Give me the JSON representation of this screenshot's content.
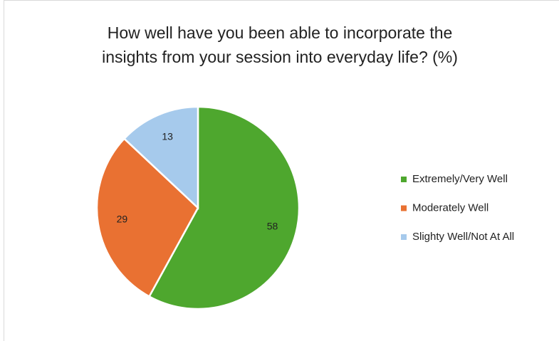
{
  "chart_data": {
    "type": "pie",
    "title": [
      "How well have you been able to incorporate the",
      "insights from your session into everyday life? (%)"
    ],
    "categories": [
      "Extremely/Very Well",
      "Moderately Well",
      "Slighty Well/Not At All"
    ],
    "values": [
      58,
      29,
      13
    ],
    "colors": [
      "#4ea72e",
      "#e97132",
      "#a6caec"
    ],
    "legend": "right"
  }
}
